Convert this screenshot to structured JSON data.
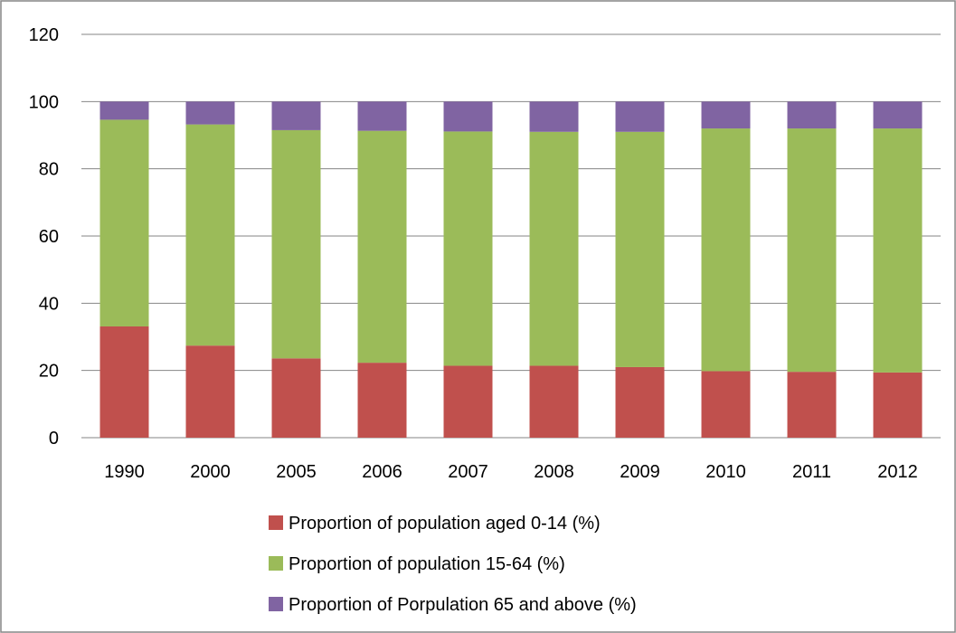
{
  "colors": {
    "series_0_14": "#c0504d",
    "series_15_64": "#9bbb59",
    "series_65_plus": "#8064a2",
    "grid": "#868686",
    "border": "#868686"
  },
  "chart_data": {
    "type": "bar",
    "stacked": true,
    "title": "",
    "xlabel": "",
    "ylabel": "",
    "ylim": [
      0,
      120
    ],
    "yticks": [
      0,
      20,
      40,
      60,
      80,
      100,
      120
    ],
    "grid": true,
    "legend_position": "bottom",
    "categories": [
      "1990",
      "2000",
      "2005",
      "2006",
      "2007",
      "2008",
      "2009",
      "2010",
      "2011",
      "2012"
    ],
    "series": [
      {
        "name": "Proportion of population aged 0-14 (%)",
        "color": "#c0504d",
        "values": [
          33.1,
          27.4,
          23.6,
          22.3,
          21.4,
          21.4,
          21.0,
          19.8,
          19.6,
          19.4
        ]
      },
      {
        "name": "Proportion of population 15-64 (%)",
        "color": "#9bbb59",
        "values": [
          61.5,
          65.8,
          67.9,
          69.0,
          69.7,
          69.6,
          70.0,
          72.2,
          72.4,
          72.6
        ]
      },
      {
        "name": "Proportion of Porpulation 65 and above (%)",
        "color": "#8064a2",
        "values": [
          5.4,
          6.8,
          8.5,
          8.7,
          8.9,
          9.0,
          9.0,
          8.0,
          8.0,
          8.0
        ]
      }
    ]
  }
}
